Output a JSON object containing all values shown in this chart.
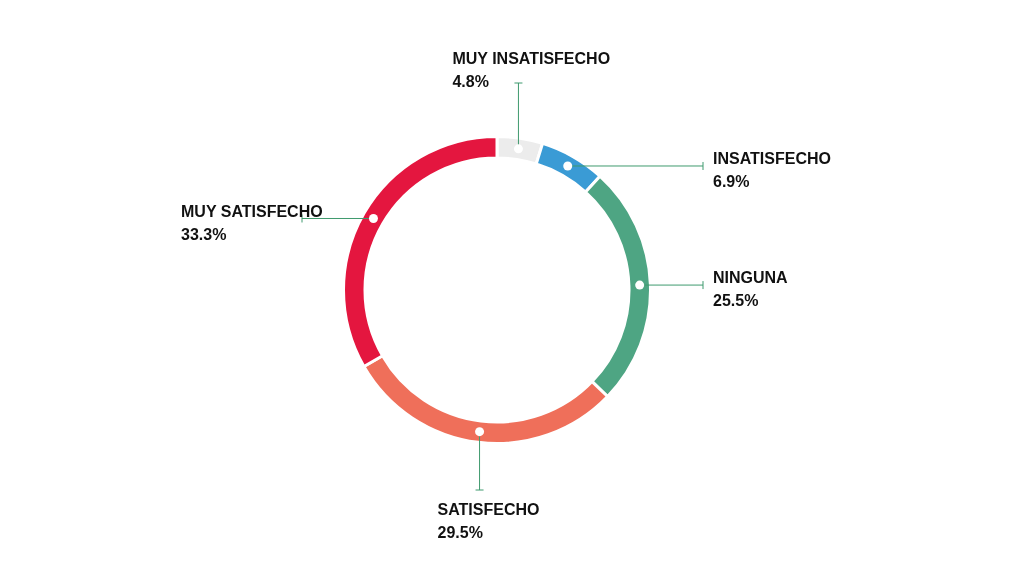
{
  "chart_data": {
    "type": "donut",
    "categories": [
      "MUY INSATISFECHO",
      "INSATISFECHO",
      "NINGUNA",
      "SATISFECHO",
      "MUY SATISFECHO"
    ],
    "values": [
      4.8,
      6.9,
      25.5,
      29.5,
      33.3
    ],
    "value_labels": [
      "4.8%",
      "6.9%",
      "25.5%",
      "29.5%",
      "33.3%"
    ],
    "colors": [
      "#ececec",
      "#3a9bd5",
      "#4ea583",
      "#ef6f5a",
      "#e4163f"
    ],
    "legend": false
  }
}
